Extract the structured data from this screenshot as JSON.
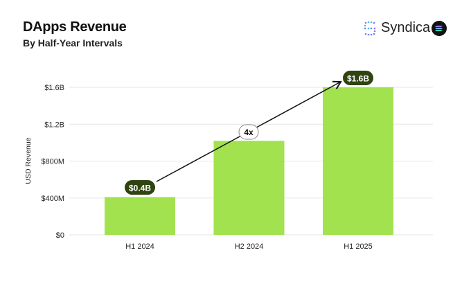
{
  "header": {
    "title": "DApps Revenue",
    "subtitle": "By Half-Year Intervals"
  },
  "brand": {
    "name": "Syndica",
    "logo_icon": "syndica-logo-icon",
    "badge_icon": "solana-icon"
  },
  "chart_data": {
    "type": "bar",
    "title": "DApps Revenue",
    "subtitle": "By Half-Year Intervals",
    "xlabel": "",
    "ylabel": "USD Revenue",
    "categories": [
      "H1 2024",
      "H2 2024",
      "H1 2025"
    ],
    "values": [
      0.41,
      1.02,
      1.6
    ],
    "value_unit": "USD billions",
    "ylim": [
      0,
      1.6
    ],
    "yticks": [
      0,
      0.4,
      0.8,
      1.2,
      1.6
    ],
    "ytick_labels": [
      "$0",
      "$400M",
      "$800M",
      "$1.2B",
      "$1.6B"
    ],
    "grid": true,
    "bar_color": "#a3e24f",
    "data_labels": [
      {
        "category": "H1 2024",
        "text": "$0.4B"
      },
      {
        "category": "H1 2025",
        "text": "$1.6B"
      }
    ],
    "label_color": "#2f4410",
    "annotation": {
      "text": "4x",
      "from": "H1 2024",
      "to": "H1 2025",
      "type": "arrow"
    }
  }
}
